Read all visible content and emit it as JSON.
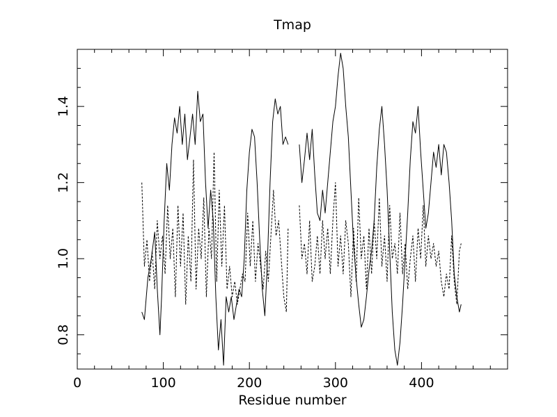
{
  "chart_data": {
    "type": "line",
    "title": "Tmap",
    "xlabel": "Residue number",
    "ylabel": "",
    "xlim": [
      0,
      500
    ],
    "ylim": [
      0.71,
      1.55
    ],
    "xticks": [
      0,
      100,
      200,
      300,
      400
    ],
    "yticks": [
      0.8,
      1.0,
      1.2,
      1.4
    ],
    "xtick_labels": [
      "0",
      "100",
      "200",
      "300",
      "400"
    ],
    "ytick_labels": [
      "0.8",
      "1.0",
      "1.2",
      "1.4"
    ],
    "grid": false,
    "colors": {
      "line": "#000000",
      "background": "#ffffff"
    },
    "series": [
      {
        "style": "solid",
        "segments": [
          [
            [
              75,
              0.86
            ],
            [
              78,
              0.84
            ],
            [
              82,
              0.95
            ],
            [
              86,
              1.0
            ],
            [
              90,
              1.07
            ],
            [
              93,
              0.92
            ],
            [
              96,
              0.8
            ],
            [
              98,
              0.9
            ],
            [
              101,
              1.1
            ],
            [
              104,
              1.25
            ],
            [
              107,
              1.18
            ],
            [
              110,
              1.3
            ],
            [
              113,
              1.37
            ],
            [
              116,
              1.33
            ],
            [
              119,
              1.4
            ],
            [
              122,
              1.3
            ],
            [
              125,
              1.38
            ],
            [
              128,
              1.26
            ],
            [
              131,
              1.32
            ],
            [
              134,
              1.38
            ],
            [
              137,
              1.3
            ],
            [
              140,
              1.44
            ],
            [
              143,
              1.36
            ],
            [
              146,
              1.38
            ],
            [
              149,
              1.2
            ],
            [
              152,
              1.08
            ],
            [
              155,
              1.18
            ],
            [
              158,
              1.1
            ],
            [
              161,
              0.9
            ],
            [
              164,
              0.76
            ],
            [
              167,
              0.84
            ],
            [
              170,
              0.72
            ],
            [
              173,
              0.9
            ],
            [
              176,
              0.86
            ],
            [
              179,
              0.9
            ],
            [
              182,
              0.84
            ],
            [
              185,
              0.88
            ],
            [
              188,
              0.92
            ],
            [
              191,
              0.9
            ],
            [
              194,
              1.0
            ],
            [
              197,
              1.18
            ],
            [
              200,
              1.28
            ],
            [
              203,
              1.34
            ],
            [
              206,
              1.32
            ],
            [
              209,
              1.2
            ],
            [
              212,
              1.05
            ],
            [
              215,
              0.92
            ],
            [
              218,
              0.85
            ],
            [
              221,
              1.0
            ],
            [
              224,
              1.2
            ],
            [
              227,
              1.36
            ],
            [
              230,
              1.42
            ],
            [
              233,
              1.38
            ],
            [
              236,
              1.4
            ],
            [
              239,
              1.3
            ],
            [
              242,
              1.32
            ],
            [
              245,
              1.3
            ]
          ],
          [
            [
              258,
              1.3
            ],
            [
              261,
              1.2
            ],
            [
              264,
              1.26
            ],
            [
              267,
              1.33
            ],
            [
              270,
              1.26
            ],
            [
              273,
              1.34
            ],
            [
              276,
              1.22
            ],
            [
              279,
              1.12
            ],
            [
              282,
              1.1
            ],
            [
              285,
              1.18
            ],
            [
              288,
              1.12
            ],
            [
              291,
              1.2
            ],
            [
              294,
              1.28
            ],
            [
              297,
              1.36
            ],
            [
              300,
              1.4
            ],
            [
              303,
              1.48
            ],
            [
              306,
              1.54
            ],
            [
              309,
              1.5
            ],
            [
              312,
              1.4
            ],
            [
              315,
              1.32
            ],
            [
              318,
              1.18
            ],
            [
              321,
              1.04
            ],
            [
              324,
              0.95
            ],
            [
              327,
              0.88
            ],
            [
              330,
              0.82
            ],
            [
              333,
              0.84
            ],
            [
              336,
              0.9
            ],
            [
              339,
              0.97
            ],
            [
              342,
              1.02
            ],
            [
              345,
              1.1
            ],
            [
              348,
              1.24
            ],
            [
              351,
              1.34
            ],
            [
              354,
              1.4
            ],
            [
              357,
              1.3
            ],
            [
              360,
              1.18
            ],
            [
              363,
              1.02
            ],
            [
              366,
              0.86
            ],
            [
              369,
              0.76
            ],
            [
              372,
              0.72
            ],
            [
              375,
              0.78
            ],
            [
              378,
              0.88
            ],
            [
              381,
              1.0
            ],
            [
              384,
              1.12
            ],
            [
              387,
              1.26
            ],
            [
              390,
              1.36
            ],
            [
              393,
              1.33
            ],
            [
              396,
              1.4
            ],
            [
              399,
              1.28
            ],
            [
              402,
              1.18
            ],
            [
              405,
              1.08
            ],
            [
              408,
              1.12
            ],
            [
              411,
              1.2
            ],
            [
              414,
              1.28
            ],
            [
              417,
              1.24
            ],
            [
              420,
              1.3
            ],
            [
              423,
              1.22
            ],
            [
              426,
              1.3
            ],
            [
              429,
              1.28
            ],
            [
              432,
              1.2
            ],
            [
              435,
              1.1
            ],
            [
              438,
              0.96
            ],
            [
              441,
              0.9
            ],
            [
              444,
              0.86
            ],
            [
              446,
              0.88
            ]
          ]
        ]
      },
      {
        "style": "dashed",
        "segments": [
          [
            [
              75,
              1.2
            ],
            [
              78,
              0.98
            ],
            [
              81,
              1.05
            ],
            [
              84,
              0.94
            ],
            [
              87,
              1.02
            ],
            [
              90,
              0.92
            ],
            [
              93,
              1.1
            ],
            [
              96,
              1.0
            ],
            [
              99,
              1.06
            ],
            [
              102,
              0.96
            ],
            [
              105,
              1.14
            ],
            [
              108,
              1.0
            ],
            [
              111,
              1.08
            ],
            [
              114,
              0.9
            ],
            [
              117,
              1.14
            ],
            [
              120,
              0.98
            ],
            [
              123,
              1.12
            ],
            [
              126,
              0.88
            ],
            [
              129,
              1.06
            ],
            [
              132,
              0.94
            ],
            [
              135,
              1.26
            ],
            [
              138,
              0.92
            ],
            [
              141,
              1.08
            ],
            [
              144,
              1.0
            ],
            [
              147,
              1.16
            ],
            [
              150,
              0.9
            ],
            [
              153,
              1.08
            ],
            [
              156,
              1.0
            ],
            [
              159,
              1.28
            ],
            [
              162,
              0.94
            ],
            [
              165,
              1.18
            ],
            [
              168,
              0.98
            ],
            [
              171,
              1.14
            ],
            [
              174,
              0.92
            ],
            [
              177,
              0.98
            ],
            [
              180,
              0.9
            ],
            [
              183,
              0.94
            ],
            [
              186,
              0.88
            ],
            [
              189,
              0.92
            ],
            [
              192,
              0.96
            ],
            [
              195,
              0.94
            ],
            [
              198,
              1.12
            ],
            [
              201,
              0.98
            ],
            [
              204,
              1.1
            ],
            [
              207,
              0.94
            ],
            [
              210,
              1.04
            ],
            [
              213,
              0.98
            ],
            [
              216,
              0.92
            ],
            [
              219,
              1.02
            ],
            [
              222,
              0.94
            ],
            [
              225,
              1.06
            ],
            [
              228,
              1.18
            ],
            [
              231,
              1.06
            ],
            [
              234,
              1.1
            ],
            [
              237,
              1.0
            ],
            [
              240,
              0.9
            ],
            [
              243,
              0.86
            ],
            [
              245,
              1.08
            ]
          ],
          [
            [
              258,
              1.14
            ],
            [
              261,
              1.0
            ],
            [
              264,
              1.04
            ],
            [
              267,
              0.96
            ],
            [
              270,
              1.1
            ],
            [
              273,
              0.94
            ],
            [
              276,
              0.98
            ],
            [
              279,
              1.06
            ],
            [
              282,
              0.96
            ],
            [
              285,
              1.1
            ],
            [
              288,
              1.0
            ],
            [
              291,
              1.08
            ],
            [
              294,
              0.96
            ],
            [
              297,
              1.1
            ],
            [
              300,
              1.2
            ],
            [
              303,
              0.98
            ],
            [
              306,
              1.06
            ],
            [
              309,
              0.96
            ],
            [
              312,
              1.1
            ],
            [
              315,
              1.04
            ],
            [
              318,
              0.9
            ],
            [
              321,
              1.08
            ],
            [
              324,
              0.94
            ],
            [
              327,
              1.16
            ],
            [
              330,
              1.0
            ],
            [
              333,
              1.06
            ],
            [
              336,
              0.92
            ],
            [
              339,
              1.08
            ],
            [
              342,
              0.96
            ],
            [
              345,
              1.1
            ],
            [
              348,
              1.0
            ],
            [
              351,
              1.16
            ],
            [
              354,
              0.98
            ],
            [
              357,
              1.06
            ],
            [
              360,
              0.94
            ],
            [
              363,
              1.14
            ],
            [
              366,
              1.0
            ],
            [
              369,
              1.04
            ],
            [
              372,
              0.96
            ],
            [
              375,
              1.12
            ],
            [
              378,
              0.96
            ],
            [
              381,
              1.04
            ],
            [
              384,
              0.92
            ],
            [
              387,
              1.0
            ],
            [
              390,
              1.06
            ],
            [
              393,
              0.94
            ],
            [
              396,
              1.08
            ],
            [
              399,
              1.0
            ],
            [
              402,
              1.14
            ],
            [
              405,
              0.98
            ],
            [
              408,
              1.06
            ],
            [
              411,
              1.0
            ],
            [
              414,
              1.04
            ],
            [
              417,
              0.98
            ],
            [
              420,
              1.02
            ],
            [
              423,
              0.94
            ],
            [
              426,
              0.9
            ],
            [
              429,
              0.96
            ],
            [
              432,
              0.92
            ],
            [
              435,
              1.06
            ],
            [
              438,
              0.94
            ],
            [
              441,
              0.88
            ],
            [
              444,
              1.02
            ],
            [
              446,
              1.04
            ]
          ]
        ]
      }
    ]
  }
}
